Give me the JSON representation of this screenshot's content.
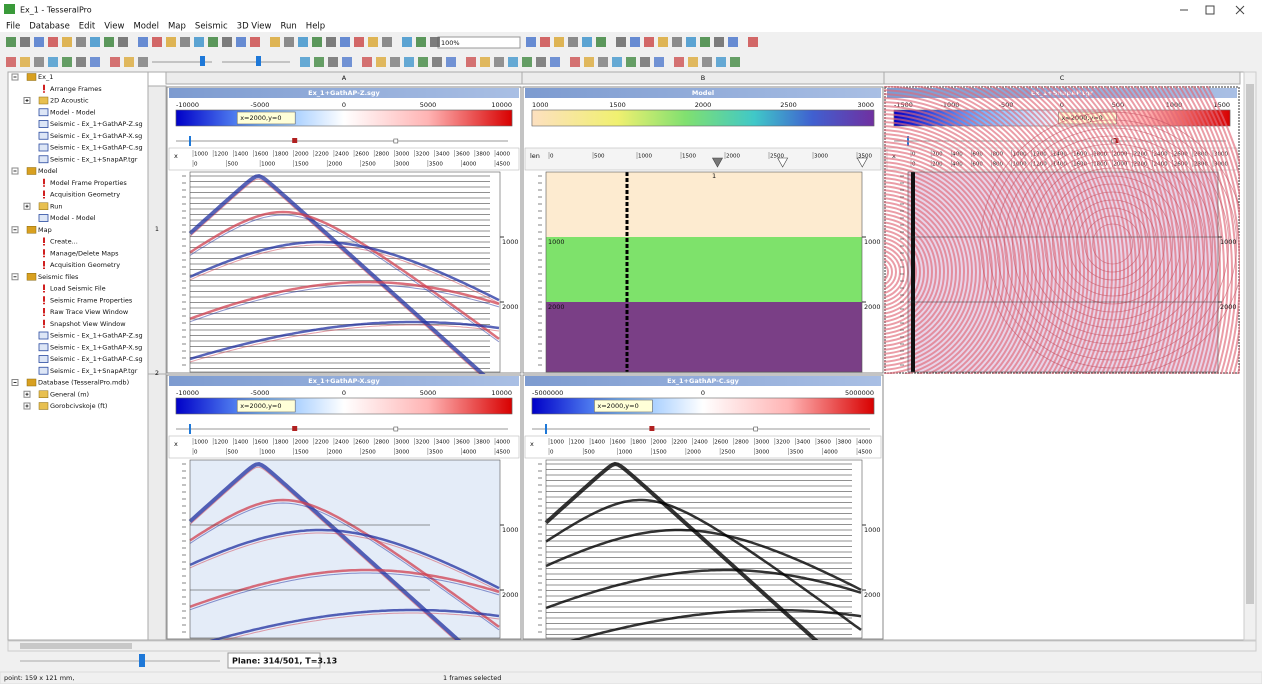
{
  "window": {
    "title": "Ex_1 - TesseralPro"
  },
  "menu": [
    "File",
    "Database",
    "Edit",
    "View",
    "Model",
    "Map",
    "Seismic",
    "3D View",
    "Run",
    "Help"
  ],
  "toolbar": {
    "zoom": "100%"
  },
  "tree": [
    {
      "label": "Ex_1",
      "children": [
        {
          "label": "Arrange Frames"
        },
        {
          "label": "2D Acoustic",
          "collapsed": true
        },
        {
          "label": "Model - Model"
        },
        {
          "label": "Seismic - Ex_1+GathAP-Z.sg"
        },
        {
          "label": "Seismic - Ex_1+GathAP-X.sg"
        },
        {
          "label": "Seismic - Ex_1+GathAP-C.sg"
        },
        {
          "label": "Seismic - Ex_1+SnapAP.tgr"
        }
      ]
    },
    {
      "label": "Model",
      "children": [
        {
          "label": "Model Frame Properties"
        },
        {
          "label": "Acquisition Geometry"
        },
        {
          "label": "Run",
          "collapsed": true
        },
        {
          "label": "Model - Model"
        }
      ]
    },
    {
      "label": "Map",
      "children": [
        {
          "label": "Create..."
        },
        {
          "label": "Manage/Delete Maps"
        },
        {
          "label": "Acquisition Geometry"
        }
      ]
    },
    {
      "label": "Seismic files",
      "children": [
        {
          "label": "Load Seismic File"
        },
        {
          "label": "Seismic Frame Properties"
        },
        {
          "label": "Raw Trace View Window"
        },
        {
          "label": "Snapshot View Window"
        },
        {
          "label": "Seismic - Ex_1+GathAP-Z.sg"
        },
        {
          "label": "Seismic - Ex_1+GathAP-X.sg"
        },
        {
          "label": "Seismic - Ex_1+GathAP-C.sg"
        },
        {
          "label": "Seismic - Ex_1+SnapAP.tgr"
        }
      ]
    },
    {
      "label": "Database (TesseralPro.mdb)",
      "children": [
        {
          "label": "General (m)",
          "collapsed": true
        },
        {
          "label": "Gorobcivskoje (ft)",
          "collapsed": true
        }
      ]
    }
  ],
  "columns": [
    "A",
    "B",
    "C"
  ],
  "rows": [
    "1",
    "2"
  ],
  "panels": [
    {
      "type": "gather",
      "title": "Ex_1+GathAP-Z.sgy",
      "colorbar": [
        -10000,
        -5000,
        0,
        5000,
        10000
      ],
      "tooltip": "x=2000,y=0",
      "axis_label": "x",
      "xticks_top": [
        1000,
        1200,
        1400,
        1600,
        1800,
        2000,
        2200,
        2400,
        2600,
        2800,
        3000,
        3200,
        3400,
        3600,
        3800,
        4000
      ],
      "xticks_bottom": [
        0,
        500,
        1000,
        1500,
        2000,
        2500,
        3000,
        3500,
        4000,
        4500
      ],
      "yticks": [
        1000,
        2000
      ]
    },
    {
      "type": "model",
      "title": "Model",
      "colorbar": [
        1000,
        1500,
        2000,
        2500,
        3000
      ],
      "axis_label": "len",
      "xticks_top": [
        0,
        500,
        1000,
        1500,
        2000,
        2500,
        3000,
        3500
      ],
      "layer_label": "1",
      "yticks": [
        1000,
        2000
      ]
    },
    {
      "type": "snapshot",
      "title": "Ex_1+SnapAP.tgr",
      "colorbar": [
        -1500,
        -1000,
        -500,
        0,
        500,
        1000,
        1500
      ],
      "tooltip": "x=2000,y=0",
      "axis_label": "x",
      "xticks_top": [
        0,
        200,
        400,
        600,
        800,
        1000,
        1200,
        1400,
        1600,
        1800,
        2000,
        2200,
        2400,
        2600,
        2800,
        3000
      ],
      "xticks_bottom": [
        0,
        200,
        400,
        600,
        800,
        1000,
        1200,
        1400,
        1600,
        1800,
        2000,
        2200,
        2400,
        2600,
        2800,
        3000
      ],
      "yticks": [
        1000,
        2000
      ]
    },
    {
      "type": "gather",
      "title": "Ex_1+GathAP-X.sgy",
      "colorbar": [
        -10000,
        -5000,
        0,
        5000,
        10000
      ],
      "tooltip": "x=2000,y=0",
      "axis_label": "x",
      "xticks_top": [
        1000,
        1200,
        1400,
        1600,
        1800,
        2000,
        2200,
        2400,
        2600,
        2800,
        3000,
        3200,
        3400,
        3600,
        3800,
        4000
      ],
      "xticks_bottom": [
        0,
        500,
        1000,
        1500,
        2000,
        2500,
        3000,
        3500,
        4000,
        4500
      ],
      "yticks": [
        1000,
        2000
      ]
    },
    {
      "type": "gather",
      "title": "Ex_1+GathAP-C.sgy",
      "colorbar": [
        -5000000,
        0,
        5000000
      ],
      "tooltip": "x=2000,y=0",
      "axis_label": "x",
      "xticks_top": [
        1000,
        1200,
        1400,
        1600,
        1800,
        2000,
        2200,
        2400,
        2600,
        2800,
        3000,
        3200,
        3400,
        3600,
        3800,
        4000
      ],
      "xticks_bottom": [
        0,
        500,
        1000,
        1500,
        2000,
        2500,
        3000,
        3500,
        4000,
        4500
      ],
      "yticks": [
        1000,
        2000
      ]
    }
  ],
  "plane": "Plane: 314/501, T=3.13",
  "status": {
    "left": "point: 159 x 121 mm,",
    "center": "1 frames selected"
  }
}
